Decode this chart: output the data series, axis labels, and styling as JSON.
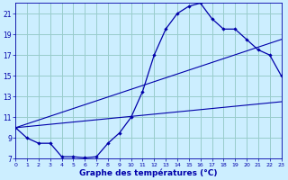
{
  "xlabel": "Graphe des températures (°C)",
  "bg_color": "#cceeff",
  "grid_color": "#99cccc",
  "line_color": "#0000aa",
  "xmin": 0,
  "xmax": 23,
  "ymin": 7,
  "ymax": 22,
  "yticks": [
    7,
    9,
    11,
    13,
    15,
    17,
    19,
    21
  ],
  "xticks": [
    0,
    1,
    2,
    3,
    4,
    5,
    6,
    7,
    8,
    9,
    10,
    11,
    12,
    13,
    14,
    15,
    16,
    17,
    18,
    19,
    20,
    21,
    22,
    23
  ],
  "hours": [
    0,
    1,
    2,
    3,
    4,
    5,
    6,
    7,
    8,
    9,
    10,
    11,
    12,
    13,
    14,
    15,
    16,
    17,
    18,
    19,
    20,
    21,
    22,
    23
  ],
  "temps": [
    10.0,
    9.0,
    8.5,
    8.5,
    7.2,
    7.2,
    7.1,
    7.2,
    8.5,
    9.5,
    11.0,
    13.5,
    17.0,
    19.5,
    21.0,
    21.7,
    22.0,
    20.5,
    19.5,
    19.5,
    18.5,
    17.5,
    17.0,
    15.0
  ],
  "upper_line": [
    [
      0,
      10.0
    ],
    [
      23,
      18.5
    ]
  ],
  "lower_line": [
    [
      0,
      10.0
    ],
    [
      23,
      12.5
    ]
  ]
}
